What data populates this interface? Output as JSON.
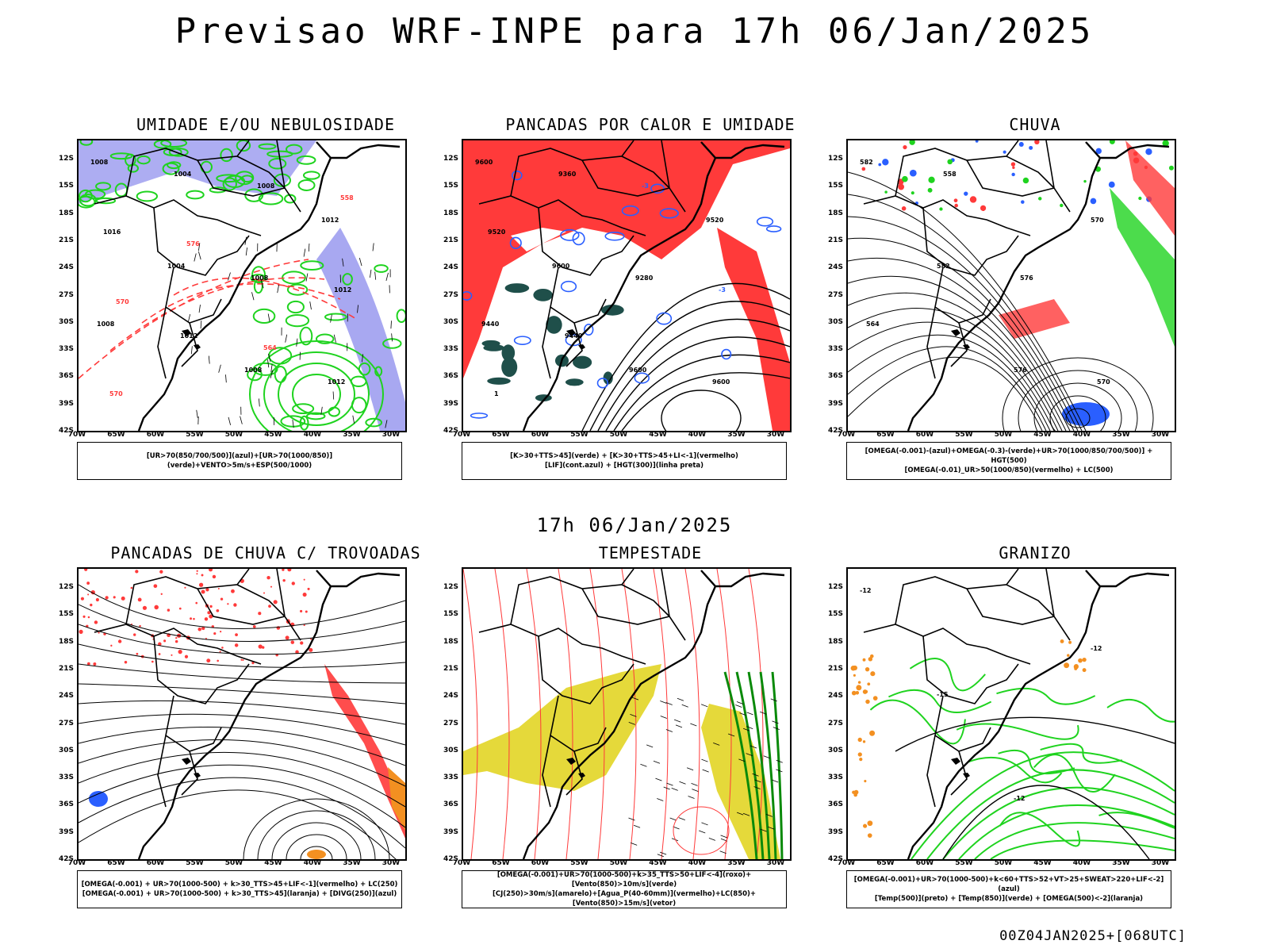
{
  "title": "Previsao WRF-INPE  para 17h 06/Jan/2025",
  "subtitle": "17h 06/Jan/2025",
  "footer": "00Z04JAN2025+[068UTC]",
  "lat_labels": [
    "12S",
    "15S",
    "18S",
    "21S",
    "24S",
    "27S",
    "30S",
    "33S",
    "36S",
    "39S",
    "42S"
  ],
  "lon_labels": [
    "70W",
    "65W",
    "60W",
    "55W",
    "50W",
    "45W",
    "40W",
    "35W",
    "30W"
  ],
  "colors": {
    "blue_fill": "#9f9ff0",
    "green": "#1fd31f",
    "red": "#ff3a3a",
    "dark_green": "#1f4f4a",
    "yellow": "#e5d93a",
    "orange": "#f39021",
    "blue": "#2a5fff"
  },
  "panels": [
    {
      "title": "UMIDADE E/OU NEBULOSIDADE",
      "legend": [
        "[UR>70(850/700/500)](azul)+[UR>70(1000/850)](verde)+VENTO>5m/s+ESP(500/1000)"
      ],
      "labels": [
        "1008",
        "1004",
        "1008",
        "1012",
        "1008",
        "1004",
        "1008",
        "1012",
        "1016",
        "1012",
        "1008",
        "1012",
        "570",
        "576",
        "564",
        "558",
        "570"
      ]
    },
    {
      "title": "PANCADAS POR CALOR E UMIDADE",
      "legend": [
        "[K>30+TTS>45](verde) + [K>30+TTS>45+LI<-1](vermelho)",
        "[LIF](cont.azul) + [HGT(300)](linha preta)"
      ],
      "labels": [
        "9600",
        "9600",
        "9600",
        "9520",
        "9440",
        "9360",
        "9280",
        "9600",
        "9520",
        "9440",
        "-3",
        "-3",
        "1"
      ]
    },
    {
      "title": "CHUVA",
      "legend": [
        "[OMEGA(-0.001)-(azul)+OMEGA(-0.3)-(verde)+UR>70(1000/850/700/500)] + HGT(500)",
        "[OMEGA(-0.01)_UR>50(1000/850)(vermelho) + LC(500)"
      ],
      "labels": [
        "582",
        "582",
        "576",
        "570",
        "564",
        "558",
        "576",
        "570"
      ]
    },
    {
      "title": "PANCADAS DE CHUVA C/ TROVOADAS",
      "legend": [
        "[OMEGA(-0.001) + UR>70(1000-500) + k>30_TTS>45+LIF<-1](vermelho) + LC(250)",
        "[OMEGA(-0.001) + UR>70(1000-500) + k>30_TTS>45](laranja) + [DIVG(250)](azul)"
      ],
      "labels": []
    },
    {
      "title": "TEMPESTADE",
      "legend": [
        "[OMEGA(-0.001)+UR>70(1000-500)+k>35_TTS>50+LIF<-4](roxo)+[Vento(850)>10m/s](verde)",
        "[CJ(250)>30m/s](amarelo)+[Agua_P(40-60mm)](vermelho)+LC(850)+[Vento(850)>15m/s](vetor)"
      ],
      "labels": []
    },
    {
      "title": "GRANIZO",
      "legend": [
        "[OMEGA(-0.001)+UR>70(1000-500)+k<60+TTS>52+VT>25+SWEAT>220+LIF<-2](azul)",
        "[Temp(500)](preto) + [Temp(850)](verde) + [OMEGA(500)<-2](laranja)"
      ],
      "labels": [
        "-12",
        "-15",
        "-12",
        "-12"
      ]
    }
  ]
}
